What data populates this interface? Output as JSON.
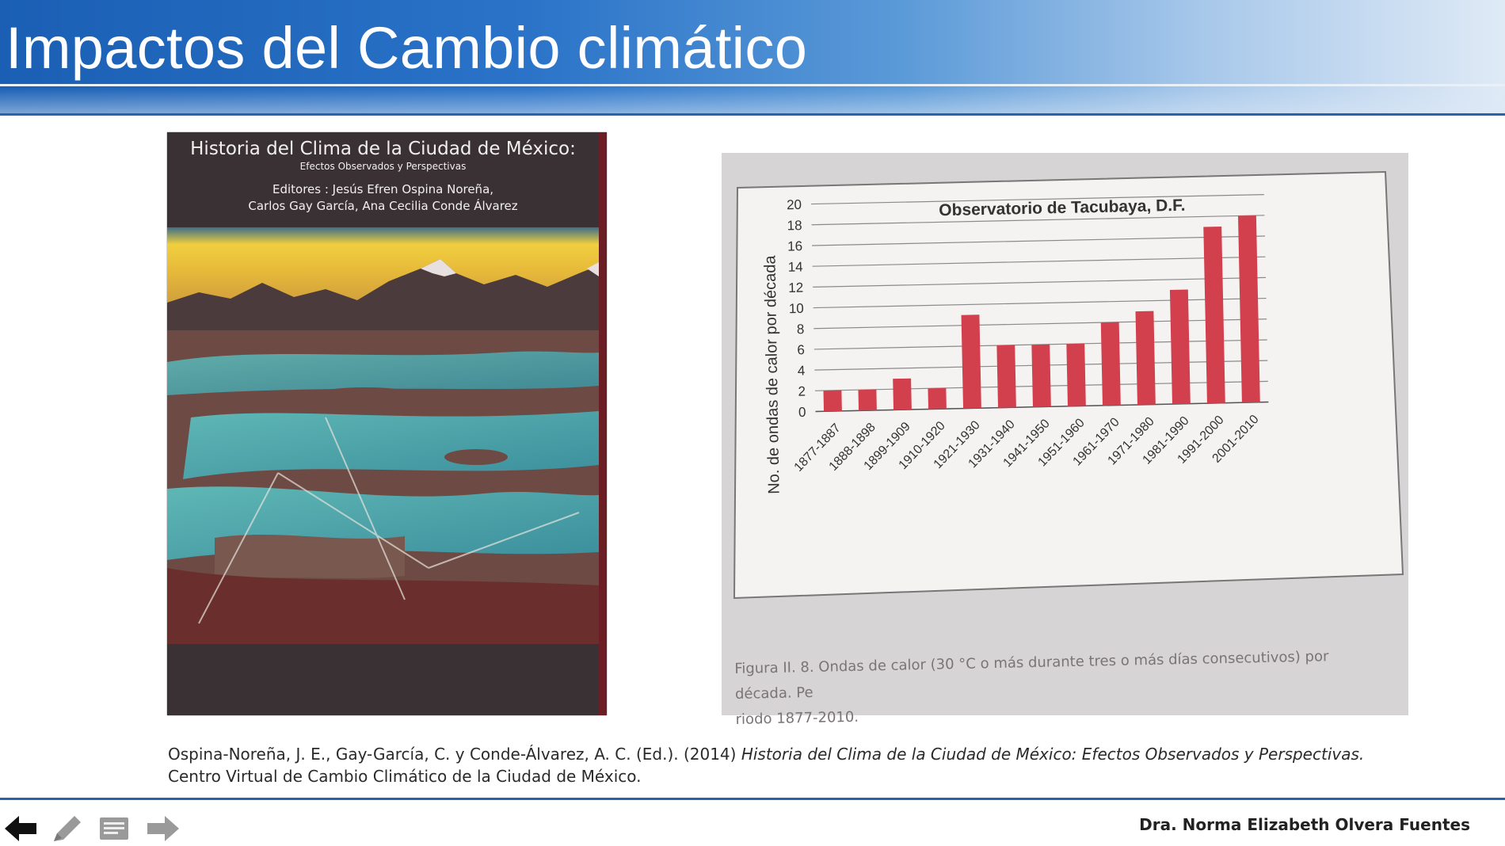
{
  "header": {
    "title": "Impactos del Cambio climático"
  },
  "book": {
    "title": "Historia del Clima de la Ciudad de México:",
    "subtitle": "Efectos Observados y Perspectivas",
    "editors_line1": "Editores : Jesús Efren Ospina Noreña,",
    "editors_line2": "Carlos Gay García, Ana Cecilia Conde Álvarez"
  },
  "chart_data": {
    "type": "bar",
    "title": "Observatorio de Tacubaya, D.F.",
    "xlabel": "",
    "ylabel": "No. de ondas de calor por década",
    "ylim": [
      0,
      20
    ],
    "yticks": [
      0,
      2,
      4,
      6,
      8,
      10,
      12,
      14,
      16,
      18,
      20
    ],
    "categories": [
      "1877-1887",
      "1888-1898",
      "1899-1909",
      "1910-1920",
      "1921-1930",
      "1931-1940",
      "1941-1950",
      "1951-1960",
      "1961-1970",
      "1971-1980",
      "1981-1990",
      "1991-2000",
      "2001-2010"
    ],
    "values": [
      2,
      2,
      3,
      2,
      9,
      6,
      6,
      6,
      8,
      9,
      11,
      17,
      18
    ],
    "bar_color": "#d2404d",
    "grid": true
  },
  "caption": {
    "line1": "Figura II. 8. Ondas de calor (30 °C o más durante tres o más días consecutivos) por década. Pe",
    "line2": "riodo 1877-2010."
  },
  "reference": {
    "authors": "Ospina-Noreña, J. E., Gay-García, C. y Conde-Álvarez, A. C. (Ed.). (2014)",
    "work_title": "Historia del Clima de la Ciudad de México: Efectos Observados y Perspectivas.",
    "publisher": "Centro Virtual de Cambio Climático de la Ciudad de México."
  },
  "footer": {
    "author": "Dra. Norma Elizabeth Olvera Fuentes",
    "nav_icons": [
      "arrow-left-icon",
      "pen-icon",
      "notes-icon",
      "arrow-right-icon"
    ]
  },
  "colors": {
    "header_blue": "#1a5fb4",
    "accent_line": "#2b62b0"
  }
}
